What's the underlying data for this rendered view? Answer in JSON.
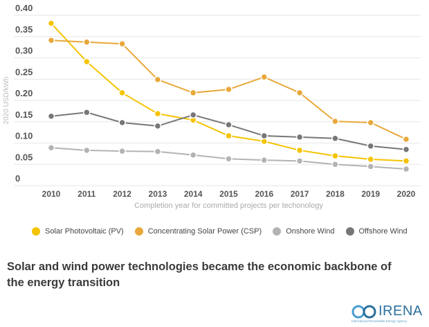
{
  "chart_data": {
    "type": "line",
    "title": "",
    "xlabel": "Completion year for committed projects per techonology",
    "ylabel": "2020 USD/kWh",
    "ylim": [
      0,
      0.4
    ],
    "yticks": [
      "0",
      "0.05",
      "0.10",
      "0.15",
      "0.20",
      "0.25",
      "0.30",
      "0.35",
      "0.40"
    ],
    "x": [
      "2010",
      "2011",
      "2012",
      "2013",
      "2014",
      "2015",
      "2016",
      "2017",
      "2018",
      "2019",
      "2020"
    ],
    "grid": true,
    "legend_position": "bottom",
    "series": [
      {
        "name": "Solar Photovoltaic (PV)",
        "color": "#f5c300",
        "values": [
          0.381,
          0.291,
          0.218,
          0.169,
          0.154,
          0.117,
          0.104,
          0.083,
          0.07,
          0.062,
          0.058
        ]
      },
      {
        "name": "Concentrating Solar Power (CSP)",
        "color": "#e8a83a",
        "values": [
          0.341,
          0.337,
          0.333,
          0.249,
          0.218,
          0.226,
          0.255,
          0.218,
          0.151,
          0.148,
          0.109
        ]
      },
      {
        "name": "Onshore Wind",
        "color": "#b3b3b3",
        "values": [
          0.089,
          0.083,
          0.081,
          0.08,
          0.072,
          0.063,
          0.06,
          0.058,
          0.05,
          0.045,
          0.039
        ]
      },
      {
        "name": "Offshore Wind",
        "color": "#777777",
        "values": [
          0.163,
          0.172,
          0.148,
          0.14,
          0.166,
          0.143,
          0.117,
          0.114,
          0.111,
          0.093,
          0.085
        ]
      }
    ]
  },
  "caption": "Solar and wind power technologies became the economic backbone of the energy transition",
  "logo": {
    "name": "IRENA",
    "subtitle": "International Renewable Energy Agency"
  }
}
